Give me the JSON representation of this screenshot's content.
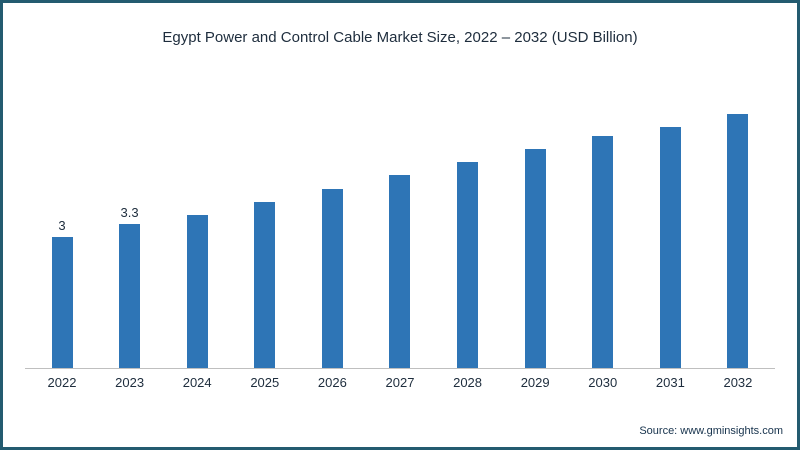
{
  "title": "Egypt Power and Control Cable Market Size, 2022 – 2032 (USD Billion)",
  "source": "Source: www.gminsights.com",
  "chart_data": {
    "type": "bar",
    "title": "Egypt Power and Control Cable Market Size, 2022 – 2032 (USD Billion)",
    "categories": [
      "2022",
      "2023",
      "2024",
      "2025",
      "2026",
      "2027",
      "2028",
      "2029",
      "2030",
      "2031",
      "2032"
    ],
    "values": [
      3,
      3.3,
      3.5,
      3.8,
      4.1,
      4.4,
      4.7,
      5.0,
      5.3,
      5.5,
      5.8
    ],
    "data_labels": [
      "3",
      "3.3",
      "",
      "",
      "",
      "",
      "",
      "",
      "",
      "",
      ""
    ],
    "xlabel": "",
    "ylabel": "",
    "ylim": [
      0,
      6.4
    ],
    "bar_color": "#2e75b6",
    "grid": false,
    "legend": "none",
    "source_note": "Source: www.gminsights.com"
  }
}
